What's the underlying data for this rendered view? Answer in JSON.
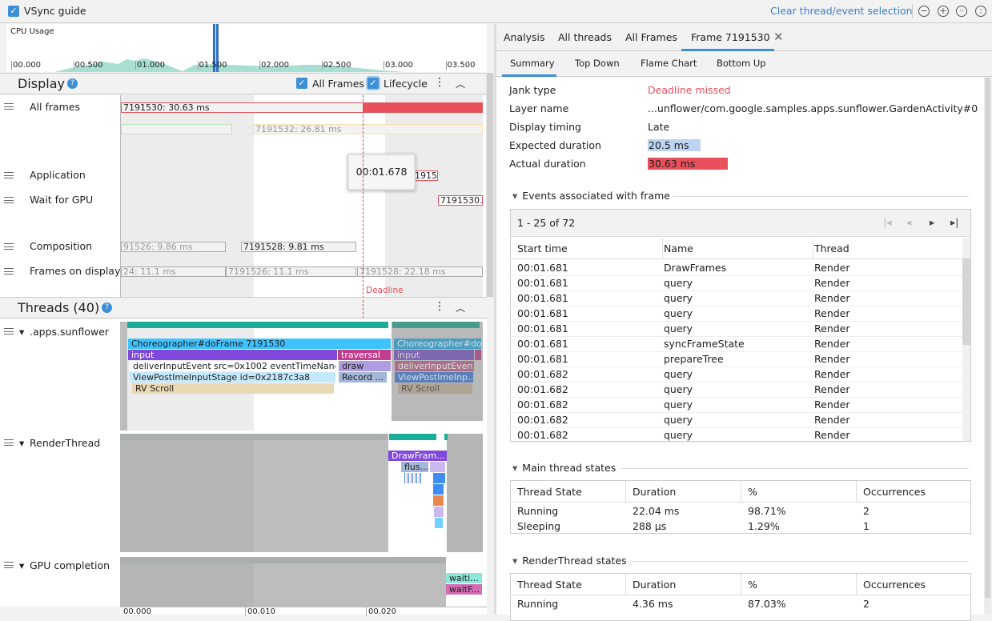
{
  "toolbar": {
    "vsync_label": "VSync guide",
    "clear_selection": "Clear thread/event selection",
    "icons": [
      "zoom-out-icon",
      "zoom-in-icon",
      "reset-zoom-icon",
      "zoom-to-selection-icon"
    ]
  },
  "cpu": {
    "title": "CPU Usage",
    "ticks": [
      "00.000",
      "00.500",
      "01.000",
      "01.500",
      "02.000",
      "02.500",
      "03.000",
      "03.500"
    ]
  },
  "display": {
    "title": "Display",
    "all_frames_label": "All Frames",
    "lifecycle_label": "Lifecycle",
    "tracks": [
      "All frames",
      "Application",
      "Wait for GPU",
      "Composition",
      "Frames on display"
    ],
    "bars": {
      "all_frames_1": "7191530: 30.63 ms",
      "all_frames_2": "7191532: 26.81 ms",
      "application": "7191530...",
      "wait_gpu": "7191530...",
      "comp_1": "91526: 9.86 ms",
      "comp_2": "7191528: 9.81 ms",
      "fod_1": "24: 11.1 ms",
      "fod_2": "7191526: 11.1 ms",
      "fod_3": "7191528: 22.18 ms"
    },
    "tooltip": "00:01.678",
    "deadline": "Deadline"
  },
  "threads": {
    "title": "Threads (40)",
    "tracks": [
      ".apps.sunflower",
      "RenderThread",
      "GPU completion"
    ],
    "slices": {
      "doframe": "Choreographer#doFrame 7191530",
      "input": "input",
      "traversal": "traversal",
      "deliver": "deliverInputEvent src=0x1002 eventTimeNano=...",
      "draw": "draw",
      "viewpost": "ViewPostImeInputStage id=0x2187c3a8",
      "record": "Record ...",
      "rvscroll": "RV Scroll",
      "doframe2": "Choreographer#do...",
      "input2": "input",
      "deliver2": "deliverInputEven...",
      "viewpost2": "ViewPostImeInp...",
      "rvscroll2": "RV Scroll",
      "drawframes": "DrawFram...",
      "flush": "flus...",
      "waiting": "waiti...",
      "waitf": "waitF..."
    },
    "axis": [
      "00.000",
      "00.010",
      "00.020"
    ]
  },
  "right": {
    "tabs": [
      "Analysis",
      "All threads",
      "All Frames",
      "Frame 7191530"
    ],
    "active_tab": 3,
    "subtabs": [
      "Summary",
      "Top Down",
      "Flame Chart",
      "Bottom Up"
    ],
    "active_subtab": 0,
    "summary": [
      {
        "label": "Jank type",
        "value": "Deadline missed"
      },
      {
        "label": "Layer name",
        "value": "...unflower/com.google.samples.apps.sunflower.GardenActivity#0"
      },
      {
        "label": "Display timing",
        "value": "Late"
      },
      {
        "label": "Expected duration",
        "value": "20.5 ms"
      },
      {
        "label": "Actual duration",
        "value": "30.63 ms"
      }
    ],
    "events": {
      "title": "Events associated with frame",
      "pager": "1 - 25 of 72",
      "columns": [
        "Start time",
        "Name",
        "Thread"
      ],
      "rows": [
        [
          "00:01.681",
          "DrawFrames",
          "Render"
        ],
        [
          "00:01.681",
          "query",
          "Render"
        ],
        [
          "00:01.681",
          "query",
          "Render"
        ],
        [
          "00:01.681",
          "query",
          "Render"
        ],
        [
          "00:01.681",
          "query",
          "Render"
        ],
        [
          "00:01.681",
          "syncFrameState",
          "Render"
        ],
        [
          "00:01.681",
          "prepareTree",
          "Render"
        ],
        [
          "00:01.682",
          "query",
          "Render"
        ],
        [
          "00:01.682",
          "query",
          "Render"
        ],
        [
          "00:01.682",
          "query",
          "Render"
        ],
        [
          "00:01.682",
          "query",
          "Render"
        ],
        [
          "00:01.682",
          "query",
          "Render"
        ]
      ]
    },
    "main_states": {
      "title": "Main thread states",
      "columns": [
        "Thread State",
        "Duration",
        "%",
        "Occurrences"
      ],
      "rows": [
        [
          "Running",
          "22.04 ms",
          "98.71%",
          "2"
        ],
        [
          "Sleeping",
          "288 µs",
          "1.29%",
          "1"
        ]
      ]
    },
    "render_states": {
      "title": "RenderThread states",
      "columns": [
        "Thread State",
        "Duration",
        "%",
        "Occurrences"
      ],
      "rows": [
        [
          "Running",
          "4.36 ms",
          "87.03%",
          "2"
        ]
      ]
    }
  },
  "colors": {
    "jank": "#e8505b",
    "expected": "#bcd3f2",
    "accent": "#3d8fd6",
    "teal": "#1aae9a"
  }
}
